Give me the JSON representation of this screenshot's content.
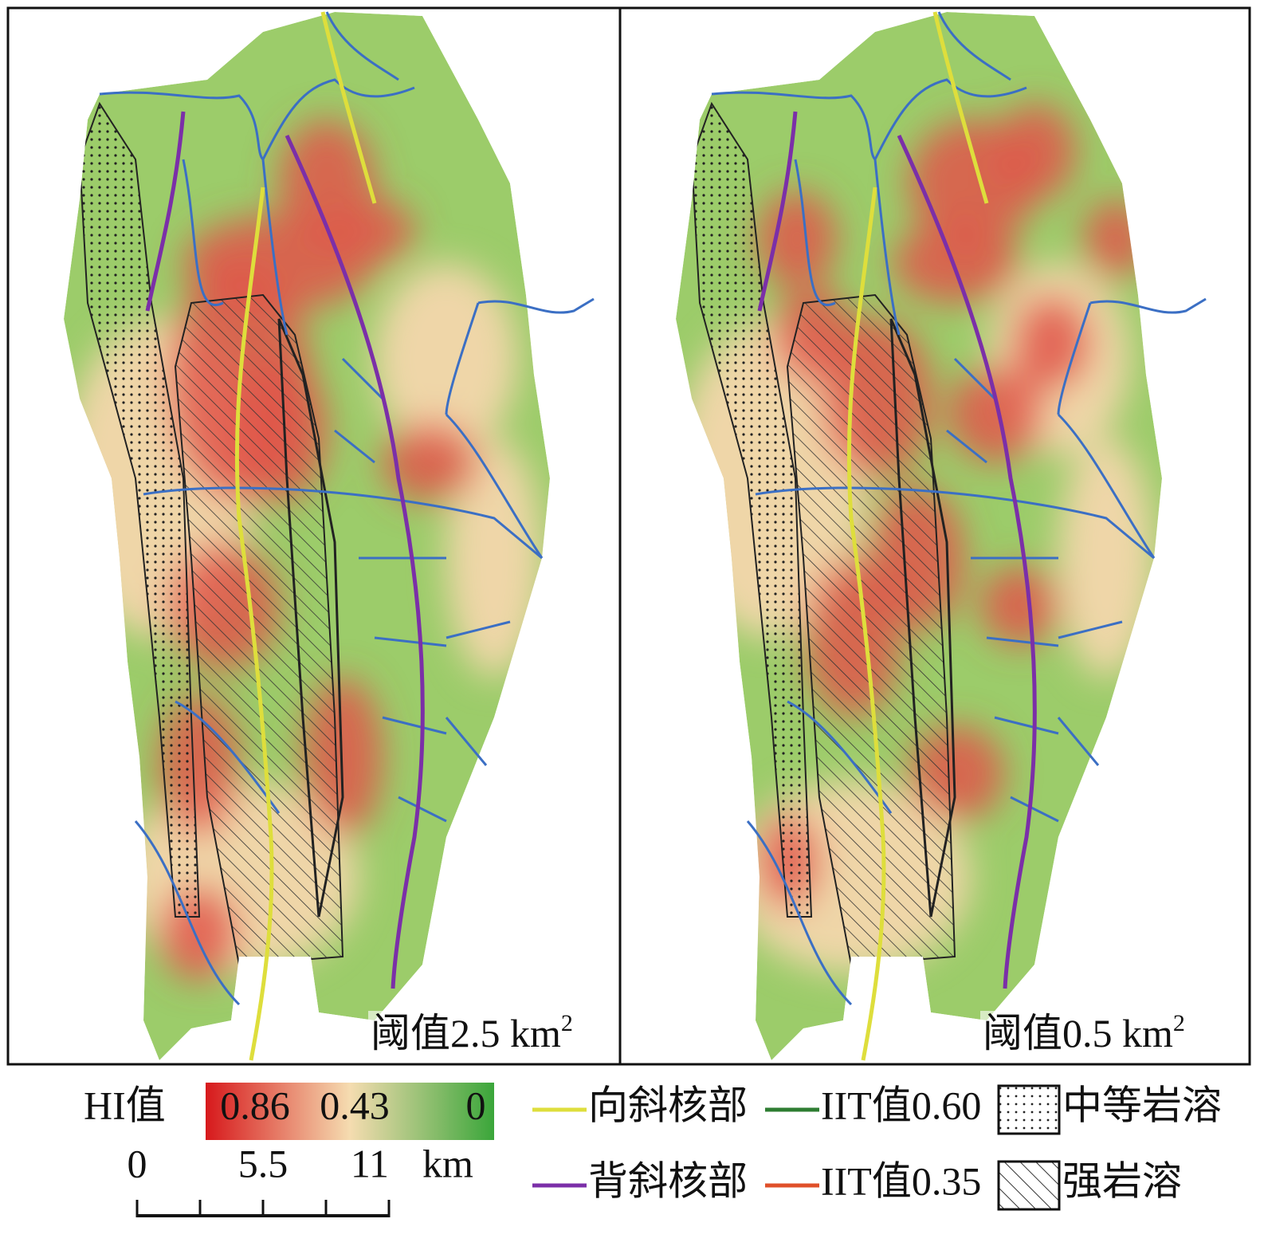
{
  "panels": [
    {
      "threshold_label": "阈值2.5 km",
      "superscript": "2"
    },
    {
      "threshold_label": "阈值0.5 km",
      "superscript": "2"
    }
  ],
  "colorbar": {
    "title": "HI值",
    "ticks": [
      0.86,
      0.43,
      0
    ],
    "colors": [
      "#d7191c",
      "#f5dcb0",
      "#3aa63a"
    ]
  },
  "scale_bar": {
    "ticks": [
      0,
      5.5,
      11
    ],
    "unit": "km"
  },
  "legend": [
    {
      "label": "向斜核部",
      "kind": "line",
      "color": "#dede3c"
    },
    {
      "label": "IIT值0.60",
      "kind": "line",
      "color": "#2e7d32"
    },
    {
      "label": "中等岩溶",
      "kind": "dots"
    },
    {
      "label": "背斜核部",
      "kind": "line",
      "color": "#7b2fa8"
    },
    {
      "label": "IIT值0.35",
      "kind": "line",
      "color": "#e0502a"
    },
    {
      "label": "强岩溶",
      "kind": "hatch"
    }
  ]
}
